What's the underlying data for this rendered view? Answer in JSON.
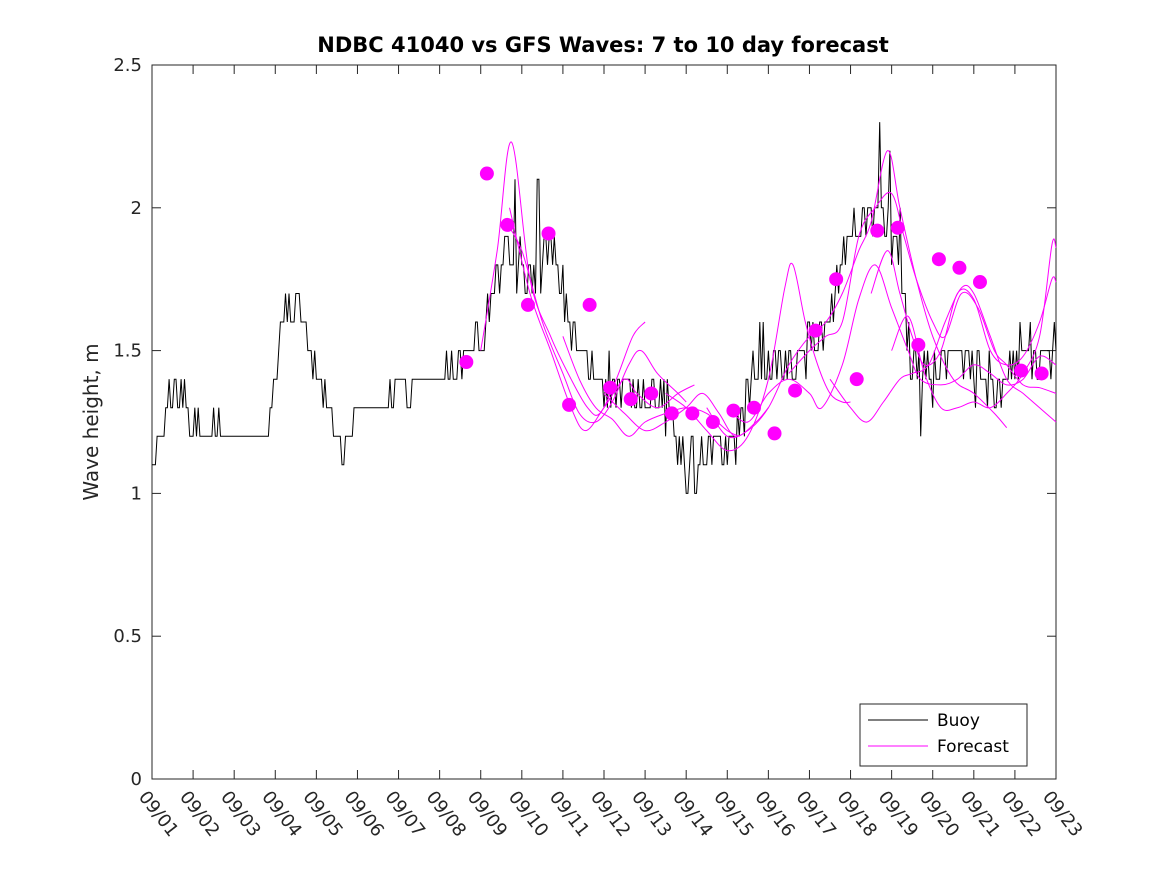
{
  "chart_data": {
    "type": "line",
    "title": "NDBC 41040 vs GFS Waves: 7 to 10 day forecast",
    "xlabel": "",
    "ylabel": "Wave height, m",
    "xlim": [
      0,
      22
    ],
    "ylim": [
      0,
      2.5
    ],
    "yticks": [
      0,
      0.5,
      1,
      1.5,
      2,
      2.5
    ],
    "ytick_labels": [
      "0",
      "0.5",
      "1",
      "1.5",
      "2",
      "2.5"
    ],
    "xtick_labels": [
      "09/01",
      "09/02",
      "09/03",
      "09/04",
      "09/05",
      "09/06",
      "09/07",
      "09/08",
      "09/09",
      "09/10",
      "09/11",
      "09/12",
      "09/13",
      "09/14",
      "09/15",
      "09/16",
      "09/17",
      "09/18",
      "09/19",
      "09/20",
      "09/21",
      "09/22",
      "09/23"
    ],
    "legend": {
      "position": "bottom-right",
      "entries": [
        {
          "label": "Buoy",
          "color": "#000000"
        },
        {
          "label": "Forecast",
          "color": "#ff00ff"
        }
      ]
    },
    "buoy": {
      "name": "Buoy",
      "color": "#000000",
      "anchors": [
        [
          0,
          1.03
        ],
        [
          0.05,
          1.15
        ],
        [
          0.3,
          1.2
        ],
        [
          0.45,
          1.35
        ],
        [
          0.8,
          1.35
        ],
        [
          1.0,
          1.22
        ],
        [
          1.5,
          1.22
        ],
        [
          2.0,
          1.2
        ],
        [
          2.5,
          1.22
        ],
        [
          2.8,
          1.22
        ],
        [
          3.05,
          1.45
        ],
        [
          3.2,
          1.65
        ],
        [
          3.55,
          1.65
        ],
        [
          3.8,
          1.5
        ],
        [
          4.2,
          1.35
        ],
        [
          4.5,
          1.2
        ],
        [
          4.75,
          1.15
        ],
        [
          5.0,
          1.28
        ],
        [
          5.5,
          1.3
        ],
        [
          6.0,
          1.35
        ],
        [
          6.5,
          1.38
        ],
        [
          7.0,
          1.4
        ],
        [
          7.5,
          1.45
        ],
        [
          8.0,
          1.55
        ],
        [
          8.3,
          1.7
        ],
        [
          8.6,
          1.85
        ],
        [
          8.9,
          1.8
        ],
        [
          9.2,
          1.75
        ],
        [
          9.5,
          1.8
        ],
        [
          9.7,
          1.85
        ],
        [
          10.0,
          1.7
        ],
        [
          10.3,
          1.55
        ],
        [
          10.6,
          1.45
        ],
        [
          11.0,
          1.4
        ],
        [
          11.5,
          1.35
        ],
        [
          12.0,
          1.35
        ],
        [
          12.5,
          1.3
        ],
        [
          12.8,
          1.2
        ],
        [
          13.0,
          1.1
        ],
        [
          13.5,
          1.12
        ],
        [
          13.8,
          1.15
        ],
        [
          14.2,
          1.2
        ],
        [
          14.5,
          1.35
        ],
        [
          14.8,
          1.5
        ],
        [
          15.0,
          1.45
        ],
        [
          15.5,
          1.45
        ],
        [
          16.0,
          1.5
        ],
        [
          16.5,
          1.6
        ],
        [
          16.8,
          1.8
        ],
        [
          17.0,
          1.92
        ],
        [
          17.3,
          1.95
        ],
        [
          17.6,
          2.0
        ],
        [
          17.85,
          1.95
        ],
        [
          18.1,
          1.85
        ],
        [
          18.3,
          1.65
        ],
        [
          18.5,
          1.45
        ],
        [
          18.8,
          1.38
        ],
        [
          19.2,
          1.45
        ],
        [
          19.6,
          1.45
        ],
        [
          19.9,
          1.45
        ],
        [
          20.3,
          1.37
        ],
        [
          20.8,
          1.42
        ],
        [
          21.2,
          1.5
        ],
        [
          21.5,
          1.5
        ],
        [
          22.0,
          1.5
        ]
      ],
      "spikes": [
        [
          8.85,
          2.1
        ],
        [
          9.4,
          2.05
        ],
        [
          13.05,
          1.0
        ],
        [
          13.2,
          1.0
        ],
        [
          17.7,
          2.3
        ],
        [
          17.95,
          2.15
        ],
        [
          18.2,
          2.0
        ],
        [
          18.7,
          1.2
        ]
      ]
    },
    "forecast": {
      "name": "Forecast",
      "color": "#ff00ff",
      "lines": [
        [
          [
            8.0,
            1.5
          ],
          [
            8.4,
            1.85
          ],
          [
            8.75,
            2.23
          ],
          [
            9.2,
            1.75
          ],
          [
            9.7,
            1.55
          ],
          [
            10.2,
            1.4
          ],
          [
            10.6,
            1.3
          ],
          [
            10.9,
            1.28
          ],
          [
            11.3,
            1.4
          ],
          [
            11.7,
            1.55
          ],
          [
            12.0,
            1.6
          ]
        ],
        [
          [
            8.6,
            1.95
          ],
          [
            9.0,
            1.85
          ],
          [
            9.5,
            1.6
          ],
          [
            10.0,
            1.42
          ],
          [
            10.4,
            1.28
          ],
          [
            10.8,
            1.25
          ],
          [
            11.2,
            1.32
          ],
          [
            11.6,
            1.45
          ],
          [
            11.9,
            1.5
          ],
          [
            12.3,
            1.42
          ],
          [
            12.8,
            1.35
          ],
          [
            13.0,
            1.32
          ]
        ],
        [
          [
            8.7,
            2.0
          ],
          [
            9.2,
            1.7
          ],
          [
            9.7,
            1.5
          ],
          [
            10.2,
            1.3
          ],
          [
            10.55,
            1.22
          ],
          [
            11.0,
            1.3
          ],
          [
            11.5,
            1.4
          ],
          [
            11.8,
            1.35
          ],
          [
            12.3,
            1.3
          ],
          [
            12.8,
            1.35
          ],
          [
            13.2,
            1.38
          ]
        ],
        [
          [
            10.0,
            1.55
          ],
          [
            10.4,
            1.4
          ],
          [
            10.8,
            1.3
          ],
          [
            11.2,
            1.26
          ],
          [
            11.6,
            1.2
          ],
          [
            12.0,
            1.25
          ],
          [
            12.5,
            1.28
          ],
          [
            13.0,
            1.3
          ],
          [
            13.5,
            1.28
          ],
          [
            14.0,
            1.22
          ],
          [
            14.3,
            1.2
          ]
        ],
        [
          [
            11.0,
            1.35
          ],
          [
            11.5,
            1.28
          ],
          [
            12.0,
            1.22
          ],
          [
            12.5,
            1.25
          ],
          [
            13.0,
            1.3
          ],
          [
            13.4,
            1.35
          ],
          [
            13.8,
            1.28
          ],
          [
            14.2,
            1.2
          ],
          [
            14.7,
            1.25
          ],
          [
            15.0,
            1.3
          ]
        ],
        [
          [
            12.5,
            1.35
          ],
          [
            13.0,
            1.3
          ],
          [
            13.5,
            1.22
          ],
          [
            14.0,
            1.15
          ],
          [
            14.5,
            1.2
          ],
          [
            15.0,
            1.4
          ],
          [
            15.4,
            1.72
          ],
          [
            15.6,
            1.8
          ],
          [
            15.9,
            1.6
          ],
          [
            16.2,
            1.45
          ],
          [
            16.5,
            1.35
          ],
          [
            16.8,
            1.32
          ],
          [
            17.0,
            1.32
          ]
        ],
        [
          [
            13.5,
            1.3
          ],
          [
            14.0,
            1.2
          ],
          [
            14.5,
            1.22
          ],
          [
            15.0,
            1.3
          ],
          [
            15.5,
            1.45
          ],
          [
            16.0,
            1.55
          ],
          [
            16.4,
            1.6
          ],
          [
            16.8,
            1.7
          ],
          [
            17.2,
            1.85
          ],
          [
            17.5,
            1.95
          ],
          [
            17.9,
            2.2
          ],
          [
            18.2,
            2.0
          ],
          [
            18.6,
            1.75
          ],
          [
            19.0,
            1.55
          ],
          [
            19.5,
            1.4
          ],
          [
            20.0,
            1.35
          ],
          [
            20.5,
            1.28
          ],
          [
            20.8,
            1.23
          ]
        ],
        [
          [
            14.0,
            1.3
          ],
          [
            14.5,
            1.25
          ],
          [
            15.0,
            1.35
          ],
          [
            15.5,
            1.4
          ],
          [
            16.0,
            1.35
          ],
          [
            16.3,
            1.3
          ],
          [
            16.8,
            1.45
          ],
          [
            17.2,
            1.68
          ],
          [
            17.6,
            1.8
          ],
          [
            18.0,
            1.65
          ],
          [
            18.4,
            1.5
          ],
          [
            18.7,
            1.4
          ],
          [
            19.2,
            1.38
          ],
          [
            19.6,
            1.4
          ],
          [
            20.0,
            1.45
          ],
          [
            20.4,
            1.42
          ],
          [
            20.8,
            1.38
          ],
          [
            21.2,
            1.4
          ],
          [
            21.6,
            1.48
          ],
          [
            22.0,
            1.45
          ]
        ],
        [
          [
            15.5,
            1.42
          ],
          [
            16.0,
            1.5
          ],
          [
            16.4,
            1.55
          ],
          [
            16.8,
            1.6
          ],
          [
            17.2,
            1.9
          ],
          [
            17.6,
            2.0
          ],
          [
            18.0,
            2.05
          ],
          [
            18.3,
            1.9
          ],
          [
            18.6,
            1.75
          ],
          [
            19.0,
            1.6
          ],
          [
            19.3,
            1.55
          ],
          [
            19.7,
            1.7
          ],
          [
            20.1,
            1.65
          ],
          [
            20.5,
            1.5
          ],
          [
            20.8,
            1.45
          ],
          [
            21.2,
            1.38
          ],
          [
            21.6,
            1.37
          ],
          [
            22.0,
            1.35
          ]
        ],
        [
          [
            16.5,
            1.4
          ],
          [
            17.0,
            1.3
          ],
          [
            17.4,
            1.25
          ],
          [
            17.8,
            1.32
          ],
          [
            18.2,
            1.4
          ],
          [
            18.5,
            1.42
          ],
          [
            18.9,
            1.45
          ],
          [
            19.3,
            1.6
          ],
          [
            19.7,
            1.72
          ],
          [
            20.0,
            1.7
          ],
          [
            20.4,
            1.55
          ],
          [
            20.8,
            1.4
          ],
          [
            21.2,
            1.35
          ],
          [
            21.6,
            1.3
          ],
          [
            22.0,
            1.25
          ]
        ],
        [
          [
            17.5,
            1.7
          ],
          [
            17.9,
            1.85
          ],
          [
            18.2,
            1.7
          ],
          [
            18.5,
            1.55
          ],
          [
            18.8,
            1.45
          ],
          [
            19.2,
            1.5
          ],
          [
            19.6,
            1.7
          ],
          [
            20.0,
            1.68
          ],
          [
            20.4,
            1.5
          ],
          [
            20.8,
            1.45
          ],
          [
            21.2,
            1.48
          ],
          [
            21.6,
            1.6
          ],
          [
            21.9,
            1.75
          ],
          [
            22.0,
            1.74
          ]
        ],
        [
          [
            18.0,
            1.5
          ],
          [
            18.4,
            1.62
          ],
          [
            18.8,
            1.42
          ],
          [
            19.2,
            1.3
          ],
          [
            19.6,
            1.3
          ],
          [
            20.0,
            1.32
          ],
          [
            20.4,
            1.3
          ],
          [
            20.8,
            1.35
          ],
          [
            21.2,
            1.42
          ],
          [
            21.6,
            1.55
          ],
          [
            21.9,
            1.87
          ],
          [
            22.0,
            1.86
          ]
        ]
      ],
      "markers": [
        [
          7.65,
          1.46
        ],
        [
          8.15,
          2.12
        ],
        [
          8.65,
          1.94
        ],
        [
          9.15,
          1.66
        ],
        [
          9.65,
          1.91
        ],
        [
          10.15,
          1.31
        ],
        [
          10.65,
          1.66
        ],
        [
          11.15,
          1.37
        ],
        [
          11.65,
          1.33
        ],
        [
          12.15,
          1.35
        ],
        [
          12.65,
          1.28
        ],
        [
          13.15,
          1.28
        ],
        [
          13.65,
          1.25
        ],
        [
          14.15,
          1.29
        ],
        [
          14.65,
          1.3
        ],
        [
          15.15,
          1.21
        ],
        [
          15.65,
          1.36
        ],
        [
          16.15,
          1.57
        ],
        [
          16.65,
          1.75
        ],
        [
          17.15,
          1.4
        ],
        [
          17.65,
          1.92
        ],
        [
          18.15,
          1.93
        ],
        [
          18.65,
          1.52
        ],
        [
          19.15,
          1.82
        ],
        [
          19.65,
          1.79
        ],
        [
          20.15,
          1.74
        ],
        [
          21.15,
          1.43
        ],
        [
          21.65,
          1.42
        ]
      ]
    }
  }
}
